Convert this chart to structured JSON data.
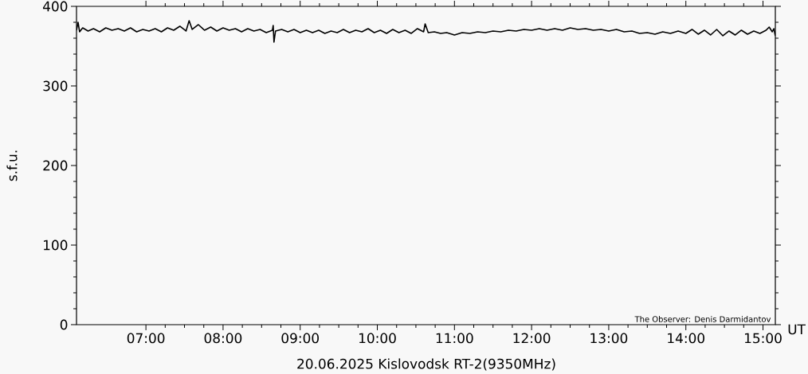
{
  "chart_data": {
    "type": "line",
    "title": "20.06.2025 Kislovodsk RT-2(9350MHz)",
    "xlabel": "UT",
    "ylabel": "s.f.u.",
    "annotations": [
      "The Observer: Denis Darmidantov"
    ],
    "xlim": [
      6.1,
      15.16
    ],
    "ylim": [
      0,
      400
    ],
    "xticks": [
      {
        "value": 7,
        "label": "07:00"
      },
      {
        "value": 8,
        "label": "08:00"
      },
      {
        "value": 9,
        "label": "09:00"
      },
      {
        "value": 10,
        "label": "10:00"
      },
      {
        "value": 11,
        "label": "11:00"
      },
      {
        "value": 12,
        "label": "12:00"
      },
      {
        "value": 13,
        "label": "13:00"
      },
      {
        "value": 14,
        "label": "14:00"
      },
      {
        "value": 15,
        "label": "15:00"
      }
    ],
    "yticks": [
      0,
      100,
      200,
      300,
      400
    ],
    "line_style": "solid",
    "series": [
      {
        "color": "#000000",
        "x": [
          6.1,
          6.12,
          6.14,
          6.18,
          6.25,
          6.32,
          6.4,
          6.48,
          6.56,
          6.64,
          6.72,
          6.8,
          6.88,
          6.96,
          7.04,
          7.12,
          7.2,
          7.28,
          7.36,
          7.44,
          7.52,
          7.56,
          7.6,
          7.68,
          7.76,
          7.84,
          7.92,
          8.0,
          8.08,
          8.16,
          8.24,
          8.32,
          8.4,
          8.48,
          8.56,
          8.64,
          8.65,
          8.66,
          8.68,
          8.76,
          8.84,
          8.92,
          9.0,
          9.08,
          9.16,
          9.24,
          9.32,
          9.4,
          9.48,
          9.56,
          9.64,
          9.72,
          9.8,
          9.88,
          9.96,
          10.04,
          10.12,
          10.2,
          10.28,
          10.36,
          10.44,
          10.52,
          10.6,
          10.62,
          10.66,
          10.74,
          10.82,
          10.9,
          11.0,
          11.1,
          11.2,
          11.3,
          11.4,
          11.5,
          11.6,
          11.7,
          11.8,
          11.9,
          12.0,
          12.1,
          12.2,
          12.3,
          12.4,
          12.5,
          12.6,
          12.7,
          12.8,
          12.9,
          13.0,
          13.1,
          13.2,
          13.3,
          13.4,
          13.5,
          13.6,
          13.7,
          13.8,
          13.9,
          14.0,
          14.08,
          14.16,
          14.24,
          14.32,
          14.4,
          14.48,
          14.56,
          14.64,
          14.72,
          14.8,
          14.88,
          14.96,
          15.04,
          15.08,
          15.12,
          15.14,
          15.16
        ],
        "values": [
          370,
          380,
          368,
          373,
          369,
          372,
          368,
          373,
          370,
          372,
          369,
          373,
          368,
          371,
          369,
          372,
          368,
          373,
          370,
          375,
          369,
          382,
          371,
          377,
          370,
          374,
          369,
          373,
          370,
          372,
          368,
          372,
          369,
          371,
          367,
          370,
          376,
          355,
          369,
          371,
          368,
          371,
          367,
          370,
          367,
          370,
          366,
          369,
          367,
          371,
          367,
          370,
          368,
          372,
          367,
          370,
          366,
          371,
          367,
          370,
          366,
          372,
          368,
          378,
          367,
          368,
          366,
          367,
          364,
          367,
          366,
          368,
          367,
          369,
          368,
          370,
          369,
          371,
          370,
          372,
          370,
          372,
          370,
          373,
          371,
          372,
          370,
          371,
          369,
          371,
          368,
          369,
          366,
          367,
          365,
          368,
          366,
          369,
          366,
          371,
          365,
          370,
          364,
          371,
          363,
          369,
          364,
          370,
          365,
          369,
          366,
          370,
          374,
          368,
          372,
          363
        ]
      }
    ]
  }
}
